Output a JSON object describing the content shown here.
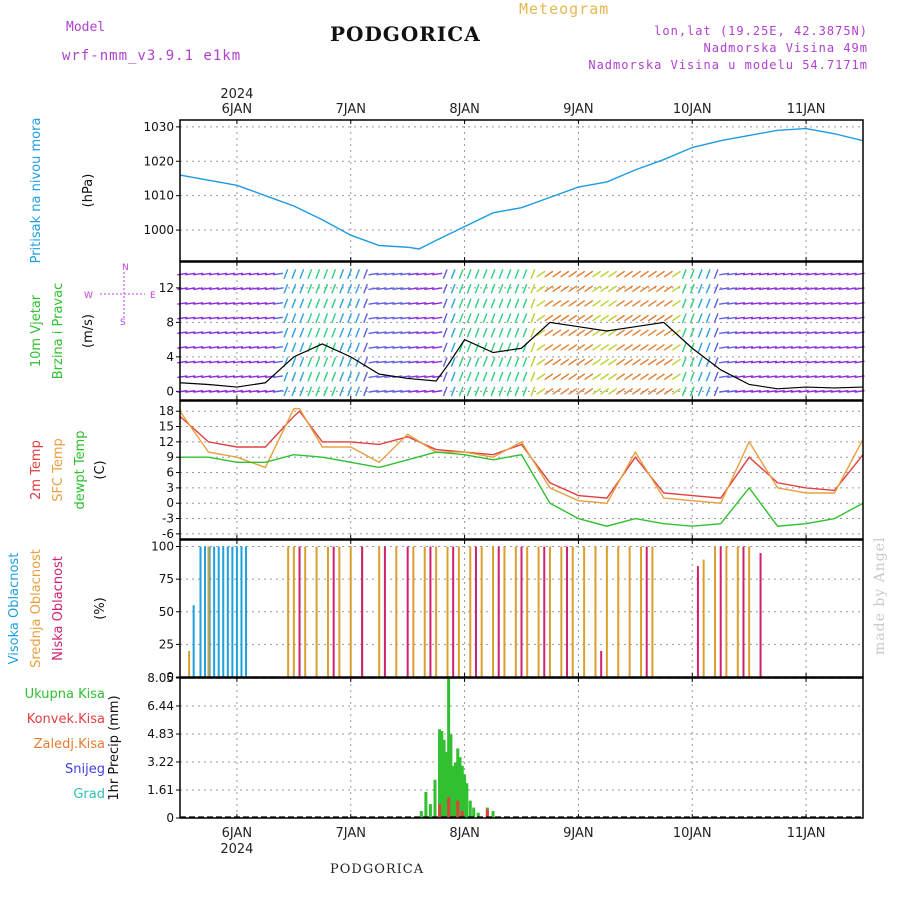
{
  "header": {
    "model_label": "Model",
    "model_name": "wrf-nmm_v3.9.1 e1km",
    "station": "PODGORICA",
    "meteogram_label": "Meteogram",
    "lonlat": "lon,lat (19.25E, 42.3875N)",
    "elevation": "Nadmorska Visina 49m",
    "model_elevation": "Nadmorska Visina u modelu 54.7171m",
    "footer_station": "PODGORICA",
    "watermark": "made by Angel"
  },
  "time_axis": {
    "year": "2024",
    "days": [
      "6JAN",
      "7JAN",
      "8JAN",
      "9JAN",
      "10JAN",
      "11JAN"
    ],
    "xlim_days": [
      5.5,
      11.5
    ],
    "tick_days": [
      6,
      7,
      8,
      9,
      10,
      11
    ]
  },
  "chart_data": [
    {
      "type": "line",
      "panel": "pressure",
      "ylabel_lines": [
        "Pritisak na nivou mora"
      ],
      "unit": "(hPa)",
      "ylim": [
        991,
        1032
      ],
      "yticks": [
        1000,
        1010,
        1020,
        1030
      ],
      "grid": true,
      "colors": {
        "line": "#1e9be0"
      },
      "x": [
        5.5,
        5.75,
        6.0,
        6.25,
        6.5,
        6.75,
        7.0,
        7.25,
        7.5,
        7.6,
        7.75,
        8.0,
        8.25,
        8.5,
        8.75,
        9.0,
        9.25,
        9.5,
        9.75,
        10.0,
        10.25,
        10.5,
        10.75,
        11.0,
        11.25,
        11.5
      ],
      "values": [
        1016,
        1014.5,
        1013,
        1010,
        1007,
        1003,
        998.5,
        995.5,
        995,
        994.5,
        997,
        1001,
        1005,
        1006.5,
        1009.5,
        1012.5,
        1014,
        1017.5,
        1020.5,
        1024,
        1026,
        1027.5,
        1029,
        1029.5,
        1028,
        1026
      ]
    },
    {
      "type": "line",
      "panel": "wind",
      "ylabel_lines": [
        "10m Vjetar",
        "Brzina i Pravac"
      ],
      "unit": "(m/s)",
      "ylim": [
        -1,
        15
      ],
      "yticks": [
        0,
        4,
        8,
        12
      ],
      "grid": true,
      "compass": {
        "n": "N",
        "s": "S",
        "e": "E",
        "w": "W"
      },
      "colors": {
        "line": "#000000",
        "max": "#e03030"
      },
      "x": [
        5.5,
        5.75,
        6.0,
        6.25,
        6.5,
        6.75,
        7.0,
        7.25,
        7.5,
        7.75,
        7.85,
        8.0,
        8.25,
        8.5,
        8.75,
        9.0,
        9.25,
        9.5,
        9.75,
        10.0,
        10.25,
        10.5,
        10.75,
        11.0,
        11.25,
        11.5
      ],
      "values": [
        1,
        0.8,
        0.5,
        1,
        4,
        5.5,
        4,
        2,
        1.5,
        1.2,
        3,
        6,
        4.5,
        5,
        8,
        7.5,
        7,
        7.5,
        8,
        5,
        2.5,
        0.8,
        0.3,
        0.5,
        0.4,
        0.5
      ]
    },
    {
      "type": "line",
      "panel": "temperature",
      "ylabel_lines": [
        "2m Temp",
        "SFC Temp",
        "dewpt Temp"
      ],
      "unit": "(C)",
      "ylim": [
        -7,
        20
      ],
      "yticks": [
        -6,
        -3,
        0,
        3,
        6,
        9,
        12,
        15,
        18
      ],
      "grid": true,
      "series": [
        {
          "name": "2m Temp",
          "color": "#e04040",
          "x": [
            5.5,
            5.75,
            6.0,
            6.25,
            6.5,
            6.55,
            6.75,
            7.0,
            7.25,
            7.5,
            7.75,
            8.0,
            8.25,
            8.5,
            8.75,
            9.0,
            9.25,
            9.5,
            9.75,
            10.0,
            10.25,
            10.5,
            10.75,
            11.0,
            11.25,
            11.5
          ],
          "values": [
            17,
            12,
            11,
            11,
            17,
            18,
            12,
            12,
            11.5,
            13,
            10.5,
            10,
            9.5,
            11.5,
            4,
            1.5,
            1,
            9,
            2,
            1.5,
            1,
            9,
            4,
            3,
            2.5,
            9.5
          ]
        },
        {
          "name": "SFC Temp",
          "color": "#e8a040",
          "x": [
            5.5,
            5.75,
            6.0,
            6.25,
            6.5,
            6.55,
            6.75,
            7.0,
            7.25,
            7.5,
            7.75,
            8.0,
            8.25,
            8.5,
            8.75,
            9.0,
            9.25,
            9.5,
            9.75,
            10.0,
            10.25,
            10.5,
            10.75,
            11.0,
            11.25,
            11.5
          ],
          "values": [
            18,
            10,
            9,
            7,
            18.5,
            18.5,
            11,
            11,
            8,
            13.5,
            10,
            10,
            9,
            12,
            3,
            0.5,
            0,
            10,
            1,
            0.5,
            0,
            12,
            3,
            2,
            2,
            12.5
          ]
        },
        {
          "name": "dewpt Temp",
          "color": "#30c030",
          "x": [
            5.5,
            5.75,
            6.0,
            6.25,
            6.5,
            6.75,
            7.0,
            7.25,
            7.5,
            7.75,
            8.0,
            8.25,
            8.5,
            8.75,
            9.0,
            9.25,
            9.5,
            9.75,
            10.0,
            10.25,
            10.5,
            10.75,
            11.0,
            11.25,
            11.5
          ],
          "values": [
            9,
            9,
            8,
            8,
            9.5,
            9,
            8,
            7,
            8.5,
            10,
            9.5,
            8.5,
            9.5,
            0,
            -3,
            -4.5,
            -3,
            -4,
            -4.5,
            -4,
            3,
            -4.5,
            -4,
            -3,
            0
          ]
        }
      ]
    },
    {
      "type": "bar",
      "panel": "cloud",
      "ylabel_lines": [
        "Visoka Oblacnost",
        "Srednja Oblacnost",
        "Niska Oblacnost"
      ],
      "unit": "(%)",
      "ylim": [
        0,
        105
      ],
      "yticks": [
        0,
        25,
        50,
        75,
        100
      ],
      "grid": true,
      "series": [
        {
          "name": "Visoka Oblacnost",
          "color": "#1ea0e0",
          "x": [
            5.62,
            5.68,
            5.72,
            5.76,
            5.8,
            5.84,
            5.88,
            5.92,
            5.96,
            6.0,
            6.04,
            6.08
          ],
          "values": [
            55,
            100,
            100,
            100,
            100,
            100,
            100,
            100,
            100,
            100,
            100,
            100
          ]
        },
        {
          "name": "Srednja Oblacnost",
          "color": "#d9a030",
          "x": [
            5.58,
            5.75,
            6.45,
            6.5,
            6.6,
            6.7,
            6.8,
            6.9,
            7.0,
            7.1,
            7.25,
            7.4,
            7.55,
            7.65,
            7.75,
            7.85,
            7.95,
            8.05,
            8.15,
            8.25,
            8.35,
            8.45,
            8.55,
            8.65,
            8.75,
            8.85,
            8.95,
            9.05,
            9.15,
            9.25,
            9.35,
            9.45,
            9.55,
            9.65,
            10.1,
            10.2,
            10.3,
            10.4,
            10.5
          ],
          "values": [
            20,
            100,
            100,
            100,
            100,
            100,
            100,
            100,
            100,
            100,
            100,
            100,
            100,
            100,
            100,
            100,
            100,
            100,
            100,
            100,
            100,
            100,
            100,
            100,
            100,
            100,
            100,
            100,
            100,
            100,
            100,
            100,
            100,
            100,
            90,
            100,
            100,
            100,
            100
          ]
        },
        {
          "name": "Niska Oblacnost",
          "color": "#d02070",
          "x": [
            6.55,
            6.85,
            7.1,
            7.3,
            7.5,
            7.7,
            7.9,
            8.1,
            8.3,
            8.5,
            8.7,
            8.9,
            9.2,
            9.6,
            10.05,
            10.25,
            10.45,
            10.6
          ],
          "values": [
            100,
            100,
            100,
            100,
            100,
            100,
            100,
            100,
            100,
            100,
            100,
            100,
            20,
            100,
            85,
            100,
            100,
            95
          ]
        }
      ]
    },
    {
      "type": "bar",
      "panel": "precip",
      "ylabel_lines": [
        "1hr Precip (mm)"
      ],
      "ylim": [
        0,
        8.05
      ],
      "yticks": [
        0,
        1.61,
        3.22,
        4.83,
        6.44,
        8.05
      ],
      "ytick_labels": [
        "0",
        "1.61",
        "3.22",
        "4.83",
        "6.44",
        "8.05"
      ],
      "grid": true,
      "legend": [
        {
          "name": "Ukupna Kisa",
          "color": "#30c030"
        },
        {
          "name": "Konvek.Kisa",
          "color": "#e04040"
        },
        {
          "name": "Zaledj.Kisa",
          "color": "#e87a30"
        },
        {
          "name": "Snijeg",
          "color": "#4040e0"
        },
        {
          "name": "Grad",
          "color": "#30c0b0"
        }
      ],
      "series": [
        {
          "name": "Ukupna Kisa",
          "color": "#30c030",
          "x": [
            7.62,
            7.66,
            7.7,
            7.74,
            7.78,
            7.8,
            7.82,
            7.84,
            7.86,
            7.88,
            7.9,
            7.92,
            7.94,
            7.96,
            7.98,
            8.0,
            8.02,
            8.05,
            8.08,
            8.12,
            8.2,
            8.25
          ],
          "values": [
            0.4,
            1.5,
            0.8,
            2.2,
            5.1,
            5.0,
            4.5,
            3.8,
            8.05,
            4.8,
            3.0,
            3.2,
            4.0,
            3.5,
            3.0,
            2.5,
            2.0,
            1.0,
            0.6,
            0.3,
            0.6,
            0.4
          ]
        },
        {
          "name": "Konvek.Kisa",
          "color": "#e04040",
          "x": [
            7.78,
            7.86,
            7.94,
            7.98,
            8.2
          ],
          "values": [
            0.8,
            1.2,
            1.0,
            0.4,
            0.5
          ]
        }
      ]
    }
  ]
}
